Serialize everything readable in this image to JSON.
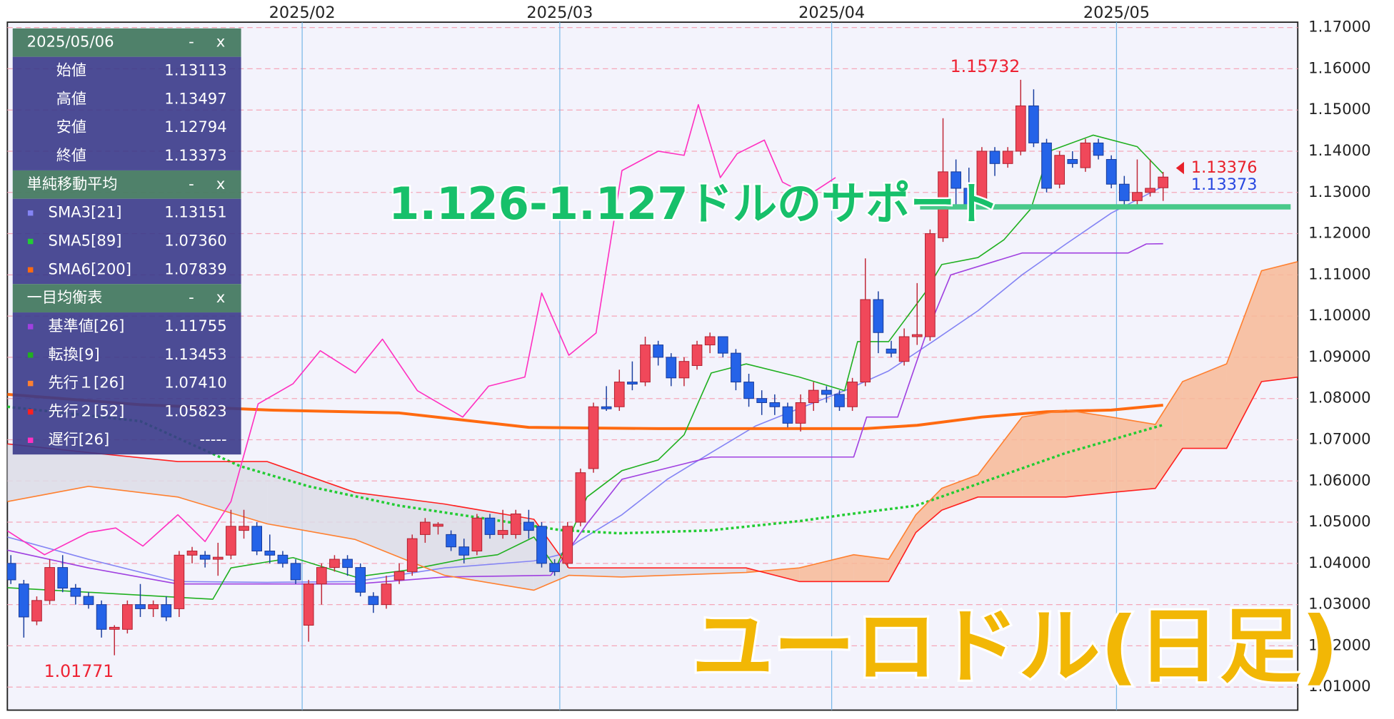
{
  "chart_data": {
    "type": "candlestick",
    "title": "ユーロドル(日足)",
    "annotation": "1.126-1.127ドルのサポート",
    "support_level": 1.1265,
    "up_color": "#f0485a",
    "down_color": "#2563e8",
    "xlim": [
      -0.27,
      99.4
    ],
    "xticks": [
      {
        "value": 22.5,
        "label": "2025/02"
      },
      {
        "value": 42.4,
        "label": "2025/03"
      },
      {
        "value": 63.4,
        "label": "2025/04"
      },
      {
        "value": 85.4,
        "label": "2025/05"
      }
    ],
    "ylim": [
      1.0044,
      1.1713
    ],
    "yticks": [
      {
        "value": 1.01,
        "label": "1.01000"
      },
      {
        "value": 1.02,
        "label": "1.02000"
      },
      {
        "value": 1.03,
        "label": "1.03000"
      },
      {
        "value": 1.04,
        "label": "1.04000"
      },
      {
        "value": 1.05,
        "label": "1.05000"
      },
      {
        "value": 1.06,
        "label": "1.06000"
      },
      {
        "value": 1.07,
        "label": "1.07000"
      },
      {
        "value": 1.08,
        "label": "1.08000"
      },
      {
        "value": 1.09,
        "label": "1.09000"
      },
      {
        "value": 1.1,
        "label": "1.10000"
      },
      {
        "value": 1.11,
        "label": "1.11000"
      },
      {
        "value": 1.12,
        "label": "1.12000"
      },
      {
        "value": 1.13,
        "label": "1.13000"
      },
      {
        "value": 1.14,
        "label": "1.14000"
      },
      {
        "value": 1.15,
        "label": "1.15000"
      },
      {
        "value": 1.16,
        "label": "1.16000"
      },
      {
        "value": 1.17,
        "label": "1.17000"
      }
    ],
    "grid": true,
    "candles": [
      [
        1.04,
        1.042,
        1.035,
        1.036
      ],
      [
        1.035,
        1.036,
        1.022,
        1.027
      ],
      [
        1.026,
        1.032,
        1.025,
        1.031
      ],
      [
        1.031,
        1.041,
        1.03,
        1.039
      ],
      [
        1.039,
        1.042,
        1.033,
        1.034
      ],
      [
        1.034,
        1.035,
        1.03,
        1.032
      ],
      [
        1.032,
        1.033,
        1.029,
        1.03
      ],
      [
        1.03,
        1.031,
        1.022,
        1.024
      ],
      [
        1.024,
        1.025,
        1.01771,
        1.0245
      ],
      [
        1.024,
        1.031,
        1.023,
        1.03
      ],
      [
        1.03,
        1.035,
        1.027,
        1.029
      ],
      [
        1.029,
        1.031,
        1.027,
        1.03
      ],
      [
        1.03,
        1.032,
        1.026,
        1.027
      ],
      [
        1.029,
        1.043,
        1.027,
        1.042
      ],
      [
        1.042,
        1.044,
        1.04,
        1.043
      ],
      [
        1.042,
        1.043,
        1.039,
        1.041
      ],
      [
        1.041,
        1.045,
        1.037,
        1.0415
      ],
      [
        1.042,
        1.053,
        1.041,
        1.049
      ],
      [
        1.048,
        1.053,
        1.046,
        1.049
      ],
      [
        1.049,
        1.05,
        1.042,
        1.043
      ],
      [
        1.043,
        1.047,
        1.04,
        1.042
      ],
      [
        1.042,
        1.043,
        1.039,
        1.04
      ],
      [
        1.04,
        1.041,
        1.035,
        1.036
      ],
      [
        1.025,
        1.036,
        1.021,
        1.035
      ],
      [
        1.035,
        1.04,
        1.03,
        1.039
      ],
      [
        1.039,
        1.042,
        1.038,
        1.041
      ],
      [
        1.041,
        1.042,
        1.037,
        1.039
      ],
      [
        1.039,
        1.04,
        1.032,
        1.033
      ],
      [
        1.032,
        1.033,
        1.028,
        1.03
      ],
      [
        1.03,
        1.037,
        1.029,
        1.035
      ],
      [
        1.036,
        1.04,
        1.035,
        1.038
      ],
      [
        1.038,
        1.047,
        1.037,
        1.046
      ],
      [
        1.047,
        1.051,
        1.045,
        1.05
      ],
      [
        1.049,
        1.05,
        1.047,
        1.0495
      ],
      [
        1.047,
        1.048,
        1.043,
        1.044
      ],
      [
        1.044,
        1.046,
        1.04,
        1.042
      ],
      [
        1.043,
        1.052,
        1.042,
        1.051
      ],
      [
        1.051,
        1.052,
        1.046,
        1.047
      ],
      [
        1.047,
        1.053,
        1.046,
        1.048
      ],
      [
        1.047,
        1.053,
        1.046,
        1.052
      ],
      [
        1.05,
        1.053,
        1.046,
        1.048
      ],
      [
        1.049,
        1.05,
        1.039,
        1.04
      ],
      [
        1.04,
        1.041,
        1.037,
        1.038
      ],
      [
        1.04,
        1.05,
        1.039,
        1.049
      ],
      [
        1.05,
        1.063,
        1.049,
        1.062
      ],
      [
        1.063,
        1.079,
        1.062,
        1.078
      ],
      [
        1.078,
        1.083,
        1.077,
        1.0775
      ],
      [
        1.078,
        1.087,
        1.077,
        1.084
      ],
      [
        1.084,
        1.089,
        1.082,
        1.0835
      ],
      [
        1.084,
        1.095,
        1.083,
        1.093
      ],
      [
        1.093,
        1.094,
        1.088,
        1.09
      ],
      [
        1.09,
        1.091,
        1.083,
        1.085
      ],
      [
        1.085,
        1.09,
        1.083,
        1.089
      ],
      [
        1.088,
        1.094,
        1.087,
        1.093
      ],
      [
        1.093,
        1.096,
        1.091,
        1.095
      ],
      [
        1.095,
        1.095,
        1.09,
        1.091
      ],
      [
        1.091,
        1.092,
        1.082,
        1.084
      ],
      [
        1.084,
        1.086,
        1.078,
        1.08
      ],
      [
        1.08,
        1.082,
        1.076,
        1.079
      ],
      [
        1.079,
        1.081,
        1.076,
        1.078
      ],
      [
        1.078,
        1.079,
        1.073,
        1.074
      ],
      [
        1.074,
        1.081,
        1.072,
        1.079
      ],
      [
        1.079,
        1.084,
        1.077,
        1.082
      ],
      [
        1.082,
        1.083,
        1.079,
        1.081
      ],
      [
        1.081,
        1.082,
        1.077,
        1.078
      ],
      [
        1.078,
        1.085,
        1.077,
        1.084
      ],
      [
        1.084,
        1.114,
        1.083,
        1.104
      ],
      [
        1.104,
        1.106,
        1.091,
        1.096
      ],
      [
        1.092,
        1.094,
        1.09,
        1.091
      ],
      [
        1.089,
        1.097,
        1.088,
        1.095
      ],
      [
        1.095,
        1.108,
        1.093,
        1.0955
      ],
      [
        1.095,
        1.121,
        1.094,
        1.12
      ],
      [
        1.119,
        1.148,
        1.118,
        1.135
      ],
      [
        1.135,
        1.138,
        1.127,
        1.131
      ],
      [
        1.131,
        1.136,
        1.126,
        1.127
      ],
      [
        1.127,
        1.141,
        1.126,
        1.14
      ],
      [
        1.14,
        1.141,
        1.134,
        1.137
      ],
      [
        1.137,
        1.141,
        1.136,
        1.14
      ],
      [
        1.14,
        1.15732,
        1.139,
        1.151
      ],
      [
        1.151,
        1.155,
        1.141,
        1.142
      ],
      [
        1.142,
        1.143,
        1.13,
        1.131
      ],
      [
        1.132,
        1.14,
        1.131,
        1.139
      ],
      [
        1.138,
        1.14,
        1.136,
        1.137
      ],
      [
        1.136,
        1.143,
        1.135,
        1.142
      ],
      [
        1.142,
        1.143,
        1.138,
        1.139
      ],
      [
        1.138,
        1.139,
        1.131,
        1.132
      ],
      [
        1.132,
        1.134,
        1.126,
        1.128
      ],
      [
        1.128,
        1.138,
        1.127,
        1.13
      ],
      [
        1.13,
        1.138,
        1.129,
        1.131
      ],
      [
        1.13113,
        1.13497,
        1.12794,
        1.13373
      ]
    ],
    "last_prices": [
      {
        "value": 1.13376,
        "color": "#e8202a"
      },
      {
        "value": 1.13373,
        "color": "#2848e0"
      }
    ],
    "panel_controls": [
      "-",
      "x"
    ],
    "ohlc_panel": {
      "title": "2025/05/06",
      "rows": [
        [
          "始値",
          "1.13113"
        ],
        [
          "高値",
          "1.13497"
        ],
        [
          "安値",
          "1.12794"
        ],
        [
          "終値",
          "1.13373"
        ]
      ]
    },
    "indicator_groups": [
      {
        "title": "単純移動平均",
        "series": [
          {
            "name": "SMA3[21]",
            "current": "1.13151",
            "color": "#8484f4",
            "line_style": "solid",
            "x": [
              -0.27,
              6,
              12.9,
              19.8,
              26.6,
              33.5,
              40.4,
              42.4,
              43.8,
              47.2,
              50.7,
              54.1,
              57.5,
              60.9,
              64.4,
              67.8,
              71.2,
              74.7,
              78.1,
              81.5,
              85,
              89
            ],
            "values": [
              1.0464,
              1.041,
              1.0356,
              1.0354,
              1.0356,
              1.0389,
              1.0406,
              1.0421,
              1.0453,
              1.0518,
              1.0604,
              1.0669,
              1.0733,
              1.0776,
              1.0819,
              1.0867,
              1.0938,
              1.1013,
              1.11,
              1.1175,
              1.125,
              1.13151
            ]
          },
          {
            "name": "SMA5[89]",
            "current": "1.07360",
            "color": "#22cc33",
            "line_style": "dotted",
            "x": [
              -0.27,
              10,
              17.7,
              23,
              30,
              37,
              42.4,
              47,
              54,
              61,
              64.4,
              69.9,
              74.7,
              81.5,
              89
            ],
            "values": [
              1.078,
              1.0745,
              1.0636,
              1.0587,
              1.054,
              1.0507,
              1.0481,
              1.0473,
              1.048,
              1.0503,
              1.0518,
              1.054,
              1.0593,
              1.0668,
              1.0736
            ]
          },
          {
            "name": "SMA6[200]",
            "current": "1.07839",
            "color": "#ff6a10",
            "line_style": "solid",
            "x": [
              -0.27,
              10,
              20,
              30,
              40,
              50,
              60,
              66,
              70,
              75,
              80,
              85,
              89
            ],
            "values": [
              1.081,
              1.0785,
              1.0772,
              1.0765,
              1.073,
              1.0727,
              1.0727,
              1.0727,
              1.0735,
              1.0755,
              1.0768,
              1.0772,
              1.07839
            ]
          }
        ]
      },
      {
        "title": "一目均衡表",
        "series": [
          {
            "name": "基準値[26]",
            "current": "1.11755",
            "color": "#a040e0",
            "line_style": "solid",
            "x": [
              -0.27,
              6,
              12.9,
              26.6,
              33.5,
              41.7,
              44.5,
              47.2,
              54.1,
              65.1,
              66.1,
              68.5,
              70.6,
              72.6,
              78.1,
              86.3,
              87.7,
              89
            ],
            "values": [
              1.0432,
              1.0389,
              1.035,
              1.035,
              1.0367,
              1.0371,
              1.0496,
              1.0604,
              1.0658,
              1.0658,
              1.0755,
              1.0755,
              1.0948,
              1.11,
              1.1153,
              1.1153,
              1.1175,
              1.11755
            ]
          },
          {
            "name": "転換[9]",
            "current": "1.13453",
            "color": "#20b020",
            "line_style": "solid",
            "x": [
              -0.27,
              15.6,
              17,
              21.8,
              26.6,
              30.7,
              34.9,
              37.6,
              40.4,
              42.1,
              44.5,
              47.2,
              50,
              52,
              54.1,
              56.8,
              60.9,
              64.4,
              65.4,
              67.8,
              70.6,
              71.9,
              74.7,
              76.7,
              78.8,
              80.2,
              83.6,
              87,
              89
            ],
            "values": [
              1.0341,
              1.0313,
              1.0389,
              1.0414,
              1.0367,
              1.0384,
              1.041,
              1.0421,
              1.0464,
              1.0389,
              1.0561,
              1.0625,
              1.0651,
              1.0712,
              1.0862,
              1.0884,
              1.0852,
              1.0819,
              1.0938,
              1.0938,
              1.1056,
              1.1125,
              1.1142,
              1.1185,
              1.1261,
              1.14,
              1.1439,
              1.1411,
              1.13453
            ]
          },
          {
            "name": "先行１[26]",
            "current": "1.07410",
            "color": "#ff8030",
            "line_style": "solid",
            "x": [
              -0.27,
              6,
              12.9,
              19.8,
              26.6,
              33.5,
              40.4,
              43.1,
              47.2,
              56.8,
              60.9,
              65.1,
              67.8,
              69.9,
              71.9,
              74.7,
              78.1,
              81.5,
              85,
              88.4,
              90.5,
              93.9,
              96.6,
              99.4
            ],
            "values": [
              1.055,
              1.0587,
              1.0561,
              1.0496,
              1.0458,
              1.0371,
              1.0335,
              1.0371,
              1.0367,
              1.0378,
              1.0389,
              1.0421,
              1.041,
              1.0518,
              1.0582,
              1.0615,
              1.0755,
              1.0772,
              1.0755,
              1.0737,
              1.0841,
              1.0884,
              1.111,
              1.1132
            ]
          },
          {
            "name": "先行２[52]",
            "current": "1.05823",
            "color": "#ff2020",
            "line_style": "solid",
            "x": [
              -0.27,
              6,
              12.9,
              19.8,
              26.6,
              33.5,
              40.4,
              43.1,
              47.2,
              56.8,
              60.9,
              65.1,
              67.8,
              69.9,
              71.9,
              74.7,
              78.1,
              81.5,
              85,
              88.4,
              90.5,
              93.9,
              96.6,
              99.4
            ],
            "values": [
              1.069,
              1.0669,
              1.0647,
              1.0647,
              1.0572,
              1.0544,
              1.0507,
              1.0389,
              1.0389,
              1.0389,
              1.0356,
              1.0356,
              1.0356,
              1.0475,
              1.0529,
              1.0561,
              1.0561,
              1.0561,
              1.0572,
              1.0582,
              1.0679,
              1.0679,
              1.0841,
              1.0852
            ]
          },
          {
            "name": "遅行[26]",
            "current": "-----",
            "color": "#ff30c0",
            "line_style": "solid",
            "x": [
              -0.27,
              2.6,
              6,
              8.1,
              10.2,
              12.9,
              15,
              17,
              19.1,
              21.8,
              23.9,
              26.6,
              28.7,
              31.4,
              34.9,
              36.9,
              39.7,
              41,
              43.1,
              45.2,
              47.2,
              50,
              52,
              53.1,
              54.8,
              56.1,
              58.2,
              59.6,
              61.6,
              63.7
            ],
            "values": [
              1.0479,
              1.0421,
              1.0475,
              1.0486,
              1.0442,
              1.0518,
              1.0453,
              1.055,
              1.0787,
              1.0836,
              1.0916,
              1.0862,
              1.0944,
              1.0819,
              1.0755,
              1.083,
              1.0852,
              1.1056,
              1.0905,
              1.0959,
              1.1353,
              1.14,
              1.139,
              1.1513,
              1.1336,
              1.1394,
              1.1427,
              1.1325,
              1.1293,
              1.1336
            ]
          }
        ]
      }
    ],
    "cloud_colors": [
      "#f7b896",
      "#dcdce6"
    ]
  }
}
